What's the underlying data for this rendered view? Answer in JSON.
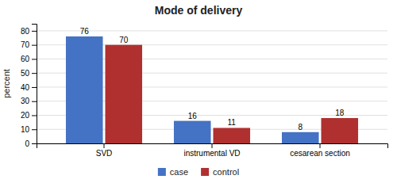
{
  "chart_data": {
    "type": "bar",
    "title": "Mode of delivery",
    "ylabel": "percent",
    "categories": [
      "SVD",
      "instrumental VD",
      "cesarean section"
    ],
    "series": [
      {
        "name": "case",
        "color": "#4472C4",
        "values": [
          76,
          16,
          8
        ]
      },
      {
        "name": "control",
        "color": "#B03030",
        "values": [
          70,
          11,
          18
        ]
      }
    ],
    "ylim": [
      0,
      85
    ],
    "yticks": [
      0,
      10,
      20,
      30,
      40,
      50,
      60,
      70,
      80
    ],
    "grid": true,
    "legend": "bottom",
    "data_labels": true
  }
}
